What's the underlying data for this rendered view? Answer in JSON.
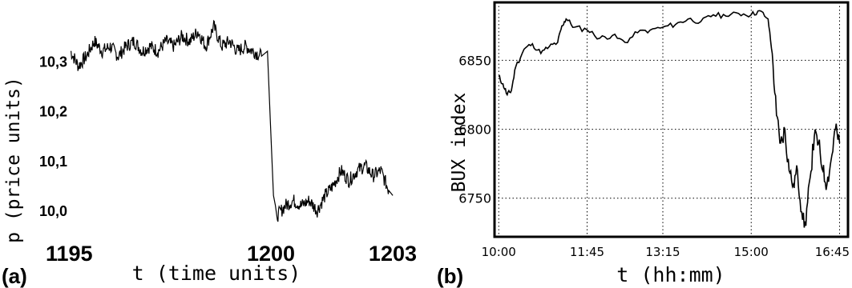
{
  "chart_data": [
    {
      "type": "line",
      "panel_label": "(a)",
      "xlabel": "t (time units)",
      "ylabel": "p (price units)",
      "x_ticks": [
        "1195",
        "1200",
        "1203"
      ],
      "y_ticks": [
        "10,0",
        "10,1",
        "10,2",
        "10,3"
      ],
      "xlim": [
        1195,
        1203.3
      ],
      "ylim": [
        9.96,
        10.41
      ],
      "grid": false,
      "series": [
        {
          "points": [
            [
              1195.0,
              10.32
            ],
            [
              1195.2,
              10.29
            ],
            [
              1195.4,
              10.31
            ],
            [
              1195.6,
              10.34
            ],
            [
              1195.8,
              10.32
            ],
            [
              1196.0,
              10.33
            ],
            [
              1196.2,
              10.31
            ],
            [
              1196.4,
              10.33
            ],
            [
              1196.6,
              10.34
            ],
            [
              1196.8,
              10.32
            ],
            [
              1197.0,
              10.33
            ],
            [
              1197.2,
              10.32
            ],
            [
              1197.4,
              10.34
            ],
            [
              1197.6,
              10.33
            ],
            [
              1197.8,
              10.35
            ],
            [
              1198.0,
              10.34
            ],
            [
              1198.2,
              10.36
            ],
            [
              1198.4,
              10.33
            ],
            [
              1198.6,
              10.37
            ],
            [
              1198.8,
              10.33
            ],
            [
              1199.0,
              10.34
            ],
            [
              1199.2,
              10.32
            ],
            [
              1199.4,
              10.33
            ],
            [
              1199.6,
              10.32
            ],
            [
              1199.8,
              10.31
            ],
            [
              1199.95,
              10.32
            ],
            [
              1200.1,
              10.03
            ],
            [
              1200.2,
              9.99
            ],
            [
              1200.4,
              10.01
            ],
            [
              1200.6,
              10.02
            ],
            [
              1200.8,
              10.01
            ],
            [
              1201.0,
              10.02
            ],
            [
              1201.2,
              10.0
            ],
            [
              1201.4,
              10.03
            ],
            [
              1201.6,
              10.05
            ],
            [
              1201.8,
              10.08
            ],
            [
              1202.0,
              10.06
            ],
            [
              1202.2,
              10.08
            ],
            [
              1202.4,
              10.09
            ],
            [
              1202.6,
              10.07
            ],
            [
              1202.8,
              10.08
            ],
            [
              1203.0,
              10.04
            ],
            [
              1203.1,
              10.03
            ]
          ]
        }
      ]
    },
    {
      "type": "line",
      "panel_label": "(b)",
      "xlabel": "t (hh:mm)",
      "ylabel": "BUX index",
      "x_ticks": [
        "10:00",
        "11:45",
        "13:15",
        "15:00",
        "16:45"
      ],
      "y_ticks": [
        "6750",
        "6800",
        "6850"
      ],
      "xlim": [
        "09:55",
        "16:55"
      ],
      "ylim": [
        6722,
        6892
      ],
      "grid": true,
      "series": [
        {
          "points": [
            [
              "10:00",
              6838
            ],
            [
              "10:05",
              6833
            ],
            [
              "10:10",
              6825
            ],
            [
              "10:15",
              6828
            ],
            [
              "10:20",
              6845
            ],
            [
              "10:30",
              6858
            ],
            [
              "10:40",
              6862
            ],
            [
              "10:50",
              6855
            ],
            [
              "11:00",
              6860
            ],
            [
              "11:10",
              6863
            ],
            [
              "11:15",
              6875
            ],
            [
              "11:20",
              6880
            ],
            [
              "11:30",
              6874
            ],
            [
              "11:45",
              6872
            ],
            [
              "12:00",
              6866
            ],
            [
              "12:15",
              6868
            ],
            [
              "12:30",
              6863
            ],
            [
              "12:45",
              6870
            ],
            [
              "13:00",
              6872
            ],
            [
              "13:15",
              6874
            ],
            [
              "13:30",
              6876
            ],
            [
              "13:45",
              6880
            ],
            [
              "14:00",
              6878
            ],
            [
              "14:15",
              6883
            ],
            [
              "14:30",
              6882
            ],
            [
              "14:45",
              6884
            ],
            [
              "15:00",
              6883
            ],
            [
              "15:10",
              6886
            ],
            [
              "15:20",
              6880
            ],
            [
              "15:25",
              6855
            ],
            [
              "15:30",
              6810
            ],
            [
              "15:35",
              6790
            ],
            [
              "15:40",
              6800
            ],
            [
              "15:45",
              6770
            ],
            [
              "15:50",
              6760
            ],
            [
              "15:55",
              6770
            ],
            [
              "16:00",
              6740
            ],
            [
              "16:05",
              6730
            ],
            [
              "16:10",
              6765
            ],
            [
              "16:15",
              6795
            ],
            [
              "16:20",
              6790
            ],
            [
              "16:25",
              6770
            ],
            [
              "16:30",
              6760
            ],
            [
              "16:35",
              6778
            ],
            [
              "16:40",
              6800
            ],
            [
              "16:45",
              6790
            ]
          ]
        }
      ]
    }
  ]
}
